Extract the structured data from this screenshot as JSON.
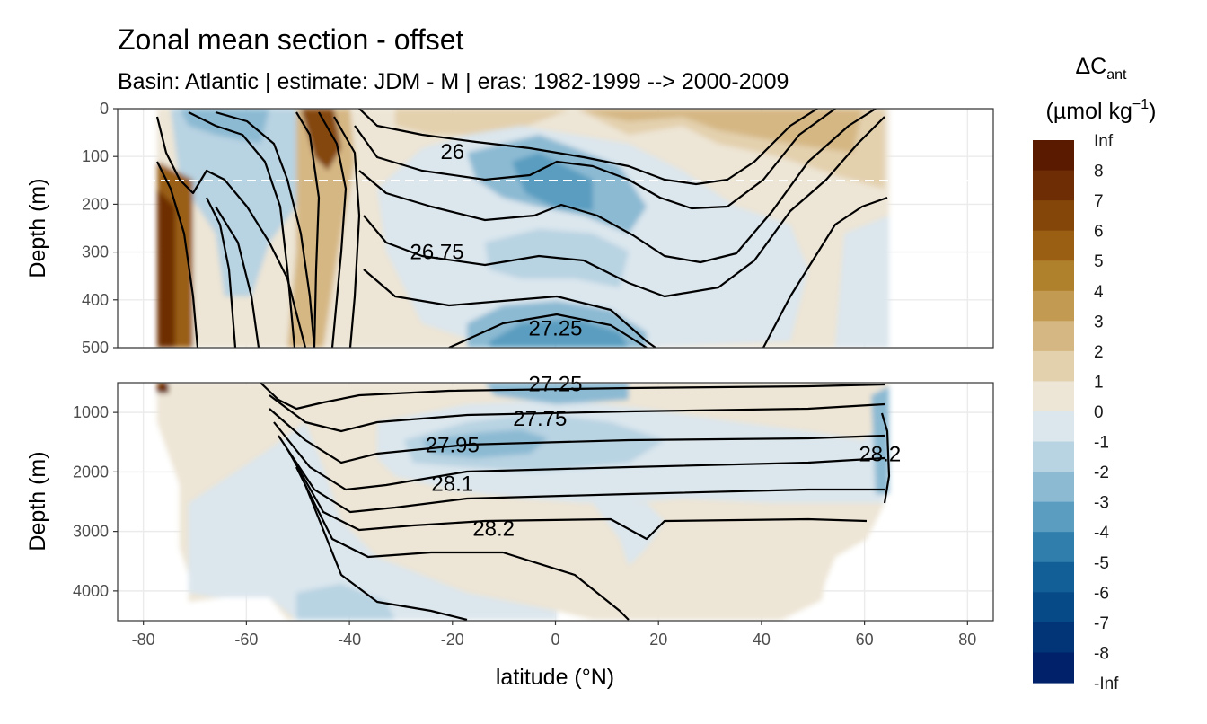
{
  "chart_data": {
    "type": "filled-contour-section",
    "title": "Zonal mean section - offset",
    "subtitle": "Basin: Atlantic | estimate: JDM - M | eras: 1982-1999 --> 2000-2009",
    "xlabel": "latitude (°N)",
    "ylabel": "Depth (m)",
    "xlim": [
      -85,
      85
    ],
    "x_ticks": [
      -80,
      -60,
      -40,
      -20,
      0,
      20,
      40,
      60,
      80
    ],
    "data_lat_range": [
      -78,
      64
    ],
    "panels": [
      {
        "name": "upper",
        "ylim": [
          0,
          500
        ],
        "y_ticks": [
          0,
          100,
          200,
          300,
          400,
          500
        ],
        "reference_depth_line": 150,
        "isopycnal_labels": [
          {
            "text": "26",
            "lat": -20,
            "depth": 90
          },
          {
            "text": "26.75",
            "lat": -23,
            "depth": 300
          },
          {
            "text": "27.25",
            "lat": 0,
            "depth": 460
          }
        ]
      },
      {
        "name": "lower",
        "ylim": [
          500,
          4500
        ],
        "y_ticks": [
          1000,
          2000,
          3000,
          4000
        ],
        "isopycnal_labels": [
          {
            "text": "27.25",
            "lat": 0,
            "depth": 520
          },
          {
            "text": "27.75",
            "lat": -3,
            "depth": 1100
          },
          {
            "text": "27.95",
            "lat": -20,
            "depth": 1550
          },
          {
            "text": "28.1",
            "lat": -20,
            "depth": 2200
          },
          {
            "text": "28.2",
            "lat": -12,
            "depth": 2950
          },
          {
            "text": "28.2",
            "lat": 63,
            "depth": 1700
          }
        ]
      }
    ],
    "legend": {
      "title_main": "ΔC",
      "title_sub": "ant",
      "unit_main": "(µmol kg",
      "unit_sup": "−1",
      "unit_close": ")",
      "labels": [
        "Inf",
        "8",
        "7",
        "6",
        "5",
        "4",
        "3",
        "2",
        "1",
        "0",
        "-1",
        "-2",
        "-3",
        "-4",
        "-5",
        "-6",
        "-7",
        "-8",
        "-Inf"
      ],
      "colors": [
        "#5a1a00",
        "#6e2d05",
        "#844609",
        "#9a5f12",
        "#b0812c",
        "#c39a52",
        "#d5b784",
        "#e3d0ad",
        "#ede5d5",
        "#dbe6ed",
        "#b8d3e2",
        "#8cbad3",
        "#5a9dc0",
        "#2f7eac",
        "#125f97",
        "#064a88",
        "#023578",
        "#01226b"
      ],
      "placement": "right"
    }
  }
}
